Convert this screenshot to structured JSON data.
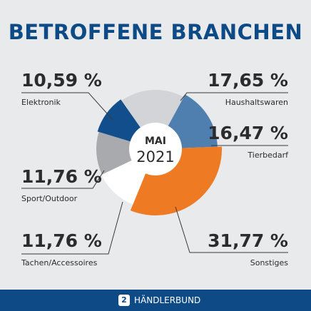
{
  "title": "BETROFFENE BRANCHEN",
  "center": {
    "month": "MAI",
    "year": "2021"
  },
  "brand": {
    "name": "HÄNDLERBUND",
    "logo_icon": "haendlerbund-logo-icon",
    "logo_glyph": "2"
  },
  "colors": {
    "background": "#e9eaeb",
    "title": "#0d4a86",
    "footer": "#0d4a86",
    "text": "#2c2c2c",
    "leader": "#3a3a3a"
  },
  "chart_data": {
    "type": "pie",
    "variant": "donut",
    "unit": "%",
    "slices": [
      {
        "label": "Haushaltswaren",
        "value": 17.65,
        "display": "17,65 %",
        "color": "#d2d4d7"
      },
      {
        "label": "Tierbedarf",
        "value": 16.47,
        "display": "16,47 %",
        "color": "#4f7fae"
      },
      {
        "label": "Sonstiges",
        "value": 31.77,
        "display": "31,77 %",
        "color": "#ee7b24"
      },
      {
        "label": "Tachen/Accessoires",
        "value": 11.76,
        "display": "11,76 %",
        "color": "#ffffff"
      },
      {
        "label": "Sport/Outdoor",
        "value": 11.76,
        "display": "11,76 %",
        "color": "#a8aaad"
      },
      {
        "label": "Elektronik",
        "value": 10.59,
        "display": "10,59 %",
        "color": "#124e8c"
      }
    ]
  }
}
